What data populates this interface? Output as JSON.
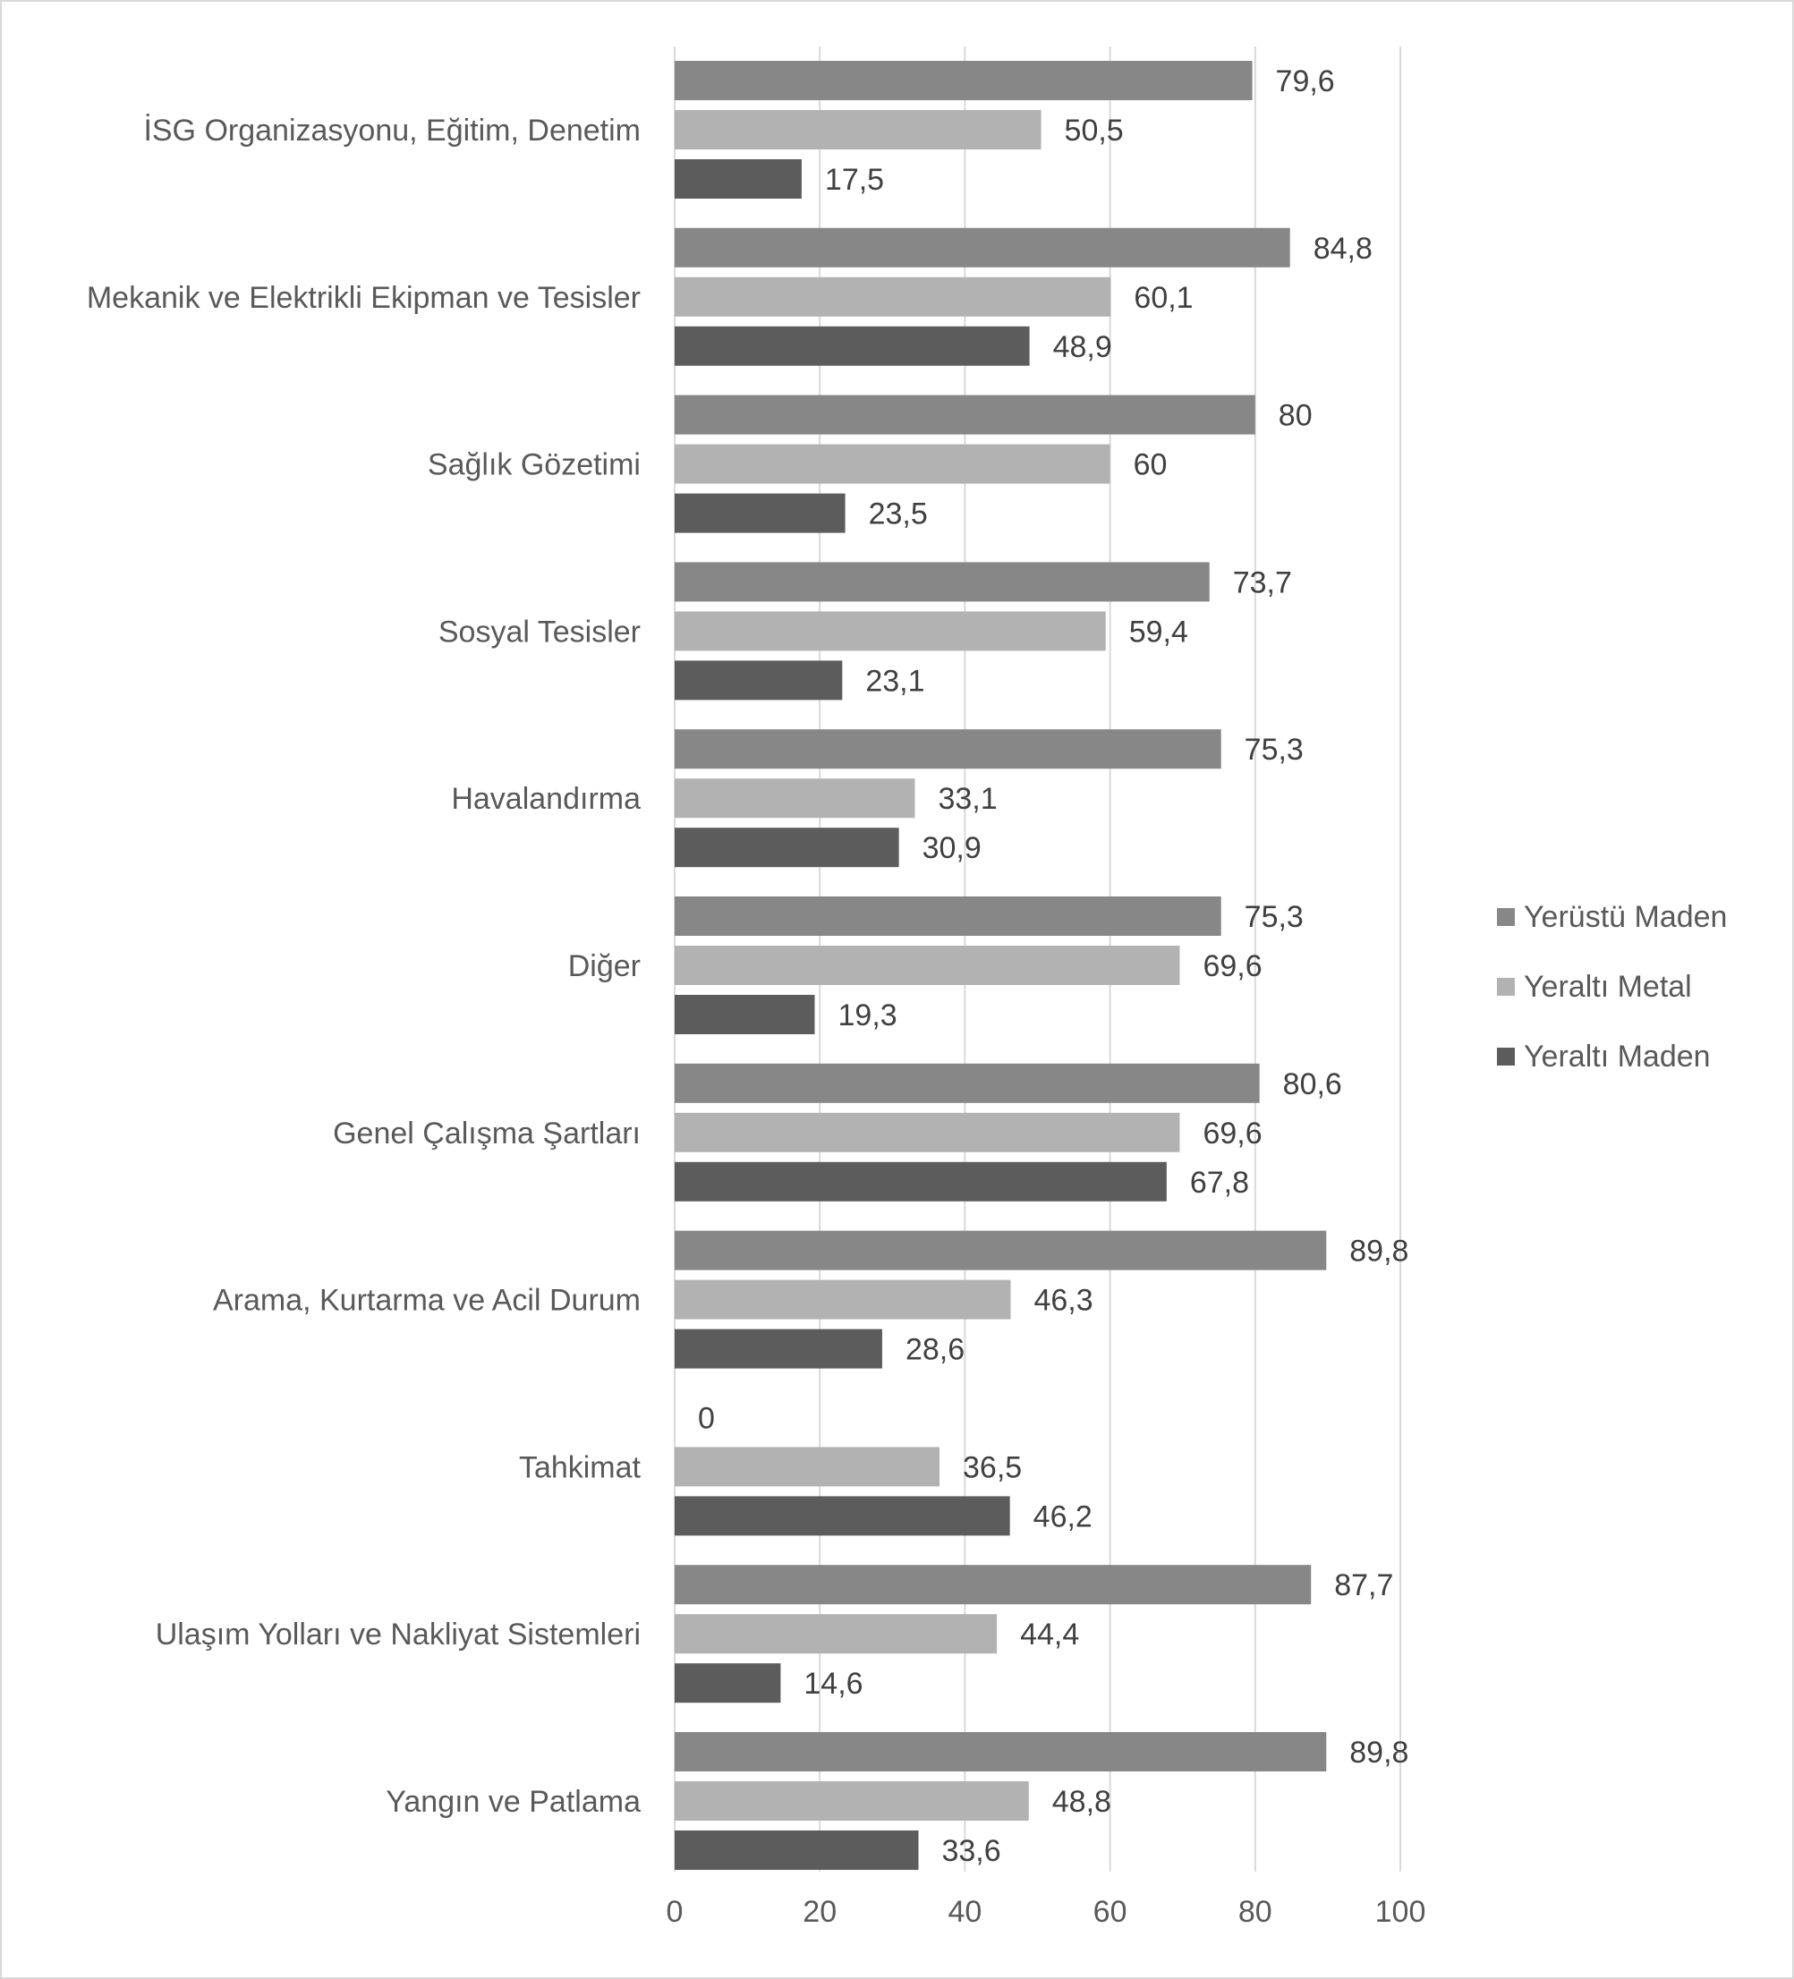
{
  "chart_data": {
    "type": "bar",
    "orientation": "horizontal",
    "title": "",
    "xlabel": "",
    "ylabel": "",
    "xlim": [
      0,
      100
    ],
    "x_ticks": [
      0,
      20,
      40,
      60,
      80,
      100
    ],
    "x_tick_labels": [
      "0",
      "20",
      "40",
      "60",
      "80",
      "100"
    ],
    "grid": "vertical",
    "legend_position": "right",
    "categories": [
      "İSG Organizasyonu, Eğitim, Denetim",
      "Mekanik ve Elektrikli Ekipman ve Tesisler",
      "Sağlık Gözetimi",
      "Sosyal Tesisler",
      "Havalandırma",
      "Diğer",
      "Genel Çalışma Şartları",
      "Arama, Kurtarma ve Acil Durum",
      "Tahkimat",
      "Ulaşım Yolları ve Nakliyat Sistemleri",
      "Yangın ve Patlama"
    ],
    "series": [
      {
        "name": "Yerüstü Maden",
        "color": "#878787",
        "values": [
          79.6,
          84.8,
          80,
          73.7,
          75.3,
          75.3,
          80.6,
          89.8,
          0,
          87.7,
          89.8
        ],
        "labels": [
          "79,6",
          "84,8",
          "80",
          "73,7",
          "75,3",
          "75,3",
          "80,6",
          "89,8",
          "0",
          "87,7",
          "89,8"
        ]
      },
      {
        "name": "Yeraltı Metal",
        "color": "#b2b2b2",
        "values": [
          50.5,
          60.1,
          60,
          59.4,
          33.1,
          69.6,
          69.6,
          46.3,
          36.5,
          44.4,
          48.8
        ],
        "labels": [
          "50,5",
          "60,1",
          "60",
          "59,4",
          "33,1",
          "69,6",
          "69,6",
          "46,3",
          "36,5",
          "44,4",
          "48,8"
        ]
      },
      {
        "name": "Yeraltı Maden",
        "color": "#5c5c5c",
        "values": [
          17.5,
          48.9,
          23.5,
          23.1,
          30.9,
          19.3,
          67.8,
          28.6,
          46.2,
          14.6,
          33.6
        ],
        "labels": [
          "17,5",
          "48,9",
          "23,5",
          "23,1",
          "30,9",
          "19,3",
          "67,8",
          "28,6",
          "46,2",
          "14,6",
          "33,6"
        ]
      }
    ]
  }
}
